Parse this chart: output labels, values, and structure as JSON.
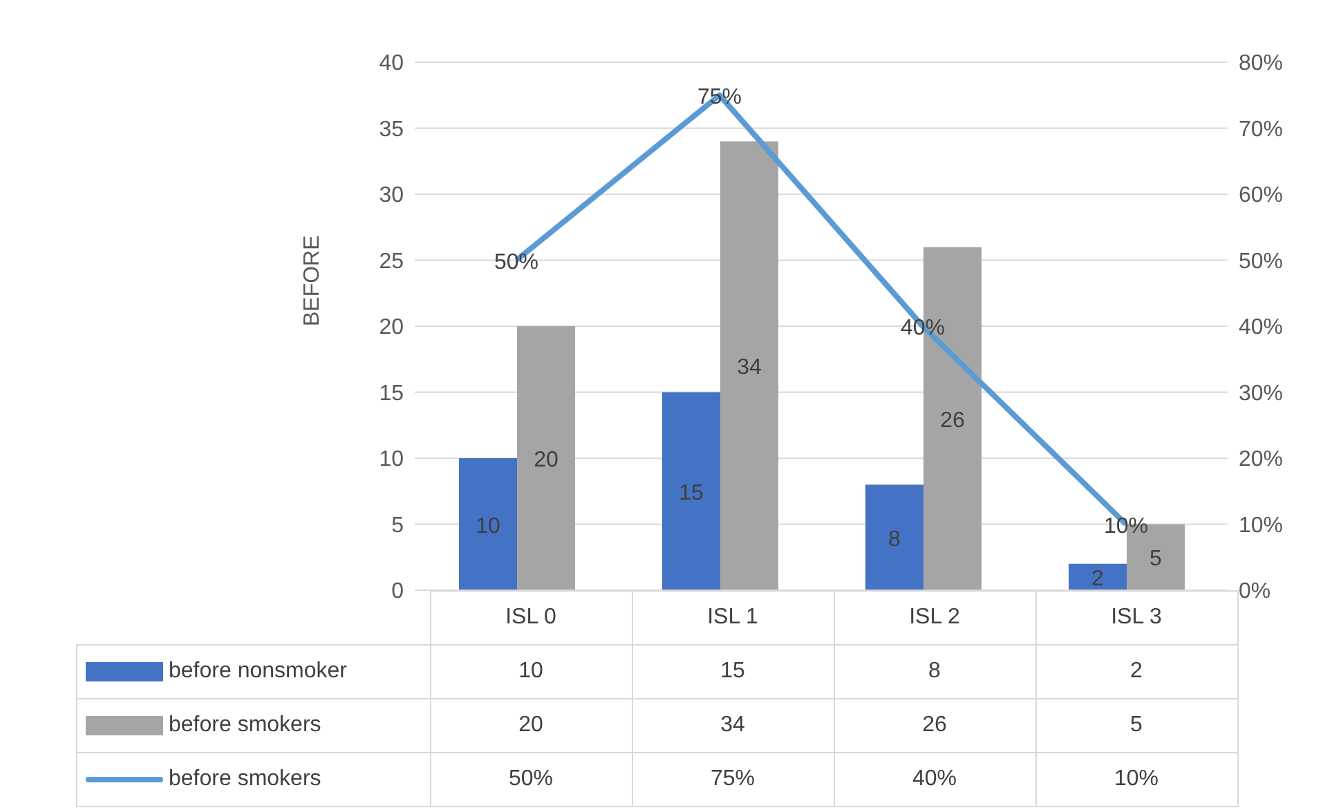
{
  "chart_data": {
    "type": "bar",
    "ylabel": "BEFORE",
    "categories": [
      "ISL 0",
      "ISL 1",
      "ISL 2",
      "ISL 3"
    ],
    "series": [
      {
        "name": "before nonsmoker",
        "color": "#4472c4",
        "values": [
          10,
          15,
          8,
          2
        ],
        "value_labels": [
          "10",
          "15",
          "8",
          "2"
        ]
      },
      {
        "name": "before smokers",
        "color": "#a5a5a5",
        "values": [
          20,
          34,
          26,
          5
        ],
        "value_labels": [
          "20",
          "34",
          "26",
          "5"
        ]
      },
      {
        "name": "before smokers",
        "type": "line",
        "axis": "y2",
        "color": "#5b9bd5",
        "values": [
          50,
          75,
          40,
          10
        ],
        "value_labels": [
          "50%",
          "75%",
          "40%",
          "10%"
        ]
      }
    ],
    "ylim": [
      0,
      40
    ],
    "yticks": [
      0,
      5,
      10,
      15,
      20,
      25,
      30,
      35,
      40
    ],
    "y2lim": [
      0,
      80
    ],
    "y2ticks": [
      {
        "value": 0,
        "label": "0%"
      },
      {
        "value": 10,
        "label": "10%"
      },
      {
        "value": 20,
        "label": "20%"
      },
      {
        "value": 30,
        "label": "30%"
      },
      {
        "value": 40,
        "label": "40%"
      },
      {
        "value": 50,
        "label": "50%"
      },
      {
        "value": 60,
        "label": "60%"
      },
      {
        "value": 70,
        "label": "70%"
      },
      {
        "value": 80,
        "label": "80%"
      }
    ],
    "grid": "y",
    "legend": "bottom",
    "data_labels": true,
    "marker": "none",
    "line_style": "solid"
  }
}
